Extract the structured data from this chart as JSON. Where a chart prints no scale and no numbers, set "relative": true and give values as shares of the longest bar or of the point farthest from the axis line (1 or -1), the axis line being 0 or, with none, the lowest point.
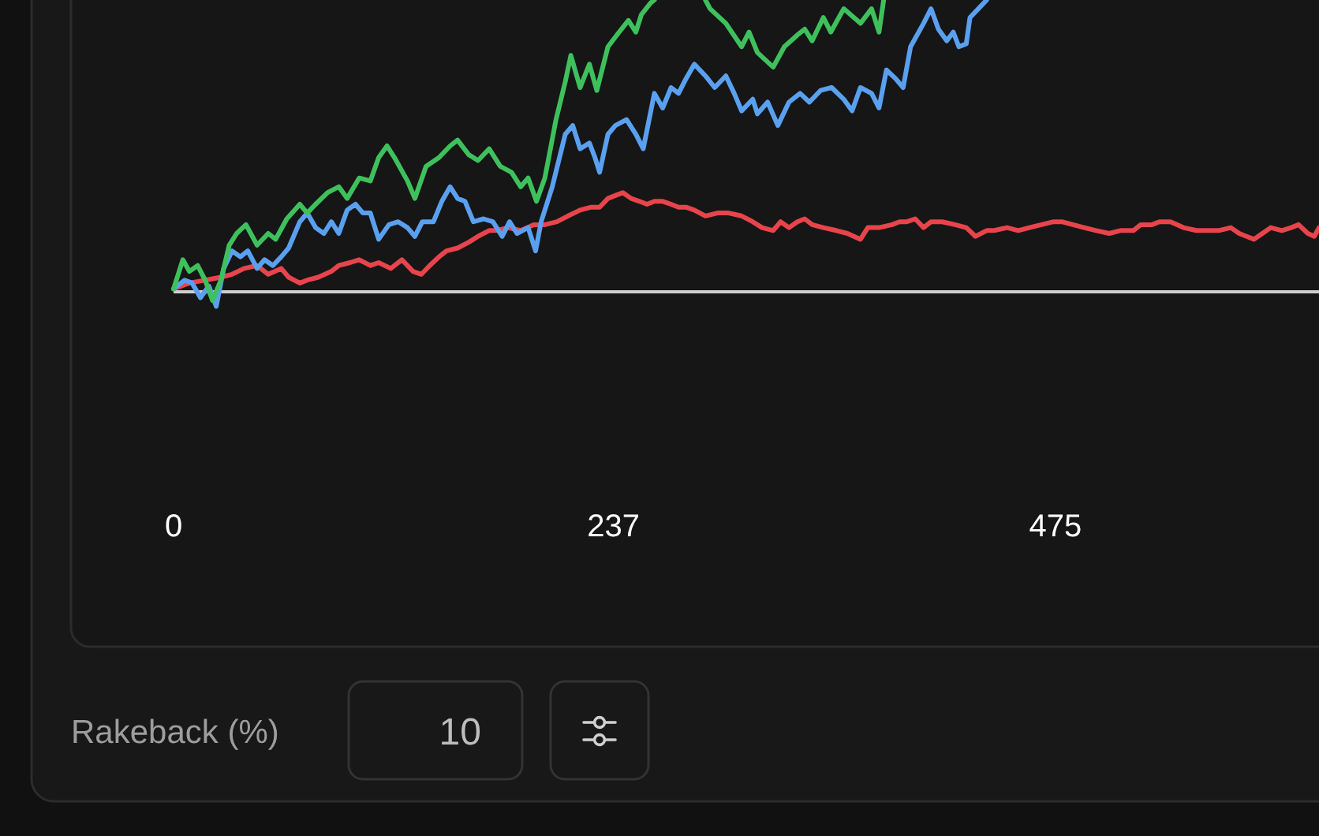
{
  "chart_data": {
    "type": "line",
    "relative": true,
    "xlim": [
      0,
      617
    ],
    "xticks": [
      0,
      237,
      475
    ],
    "series": [
      {
        "color": "#3ec15c",
        "x": [
          0,
          5,
          8.5,
          13,
          17,
          21,
          25.5,
          30,
          34,
          39,
          45,
          51,
          55,
          61,
          68,
          72,
          76.5,
          83,
          89,
          93.5,
          100,
          106,
          110.5,
          115,
          119,
          126,
          130,
          136,
          143,
          149,
          153,
          159,
          164,
          170,
          176,
          182,
          187,
          191,
          195.5,
          200,
          206,
          211,
          214,
          219,
          224,
          228,
          234,
          240,
          245,
          249,
          252,
          257,
          259,
          270,
          286.5,
          289,
          297.5,
          306,
          310,
          314.5,
          323,
          329,
          336,
          340,
          344,
          350,
          354,
          361,
          370,
          376,
          380,
          382.5
        ],
        "values": [
          0.01,
          0.11,
          0.07,
          0.09,
          0.04,
          -0.03,
          0.04,
          0.16,
          0.2,
          0.23,
          0.16,
          0.2,
          0.18,
          0.25,
          0.3,
          0.27,
          0.3,
          0.34,
          0.36,
          0.32,
          0.39,
          0.38,
          0.46,
          0.5,
          0.46,
          0.38,
          0.32,
          0.43,
          0.46,
          0.5,
          0.52,
          0.47,
          0.45,
          0.49,
          0.43,
          0.41,
          0.36,
          0.39,
          0.31,
          0.39,
          0.59,
          0.72,
          0.81,
          0.7,
          0.78,
          0.69,
          0.84,
          0.89,
          0.93,
          0.89,
          0.95,
          0.99,
          1,
          null,
          1,
          0.97,
          0.92,
          0.84,
          0.89,
          0.82,
          0.77,
          0.84,
          0.88,
          0.9,
          0.86,
          0.94,
          0.89,
          0.97,
          0.92,
          0.97,
          0.89,
          1
        ]
      },
      {
        "color": "#5aa0f0",
        "x": [
          0,
          6,
          10,
          14.5,
          19,
          23,
          27,
          31.5,
          36,
          40,
          45,
          49,
          53.5,
          58,
          62,
          68,
          72,
          76.5,
          81,
          85,
          89,
          93.5,
          98,
          102,
          106,
          110.5,
          116,
          121,
          126,
          130,
          134,
          140,
          144.5,
          149,
          153,
          157,
          161.5,
          167,
          172,
          177,
          181,
          185,
          191,
          195,
          198,
          204,
          211,
          215,
          219,
          224,
          227,
          229.5,
          234,
          238,
          244,
          249,
          253,
          259,
          263.5,
          268,
          272,
          276,
          280.5,
          286.5,
          291.5,
          297.5,
          302,
          306,
          312,
          314.5,
          320,
          325.5,
          331.5,
          337.5,
          342.5,
          348.5,
          354.5,
          361,
          365.5,
          370,
          376,
          380,
          384,
          389,
          393,
          397,
          404,
          408,
          412,
          416.5,
          420,
          423,
          427,
          429,
          433.5,
          438
        ],
        "values": [
          0.01,
          0.04,
          0.03,
          -0.02,
          0.02,
          -0.05,
          0.08,
          0.14,
          0.12,
          0.14,
          0.08,
          0.11,
          0.09,
          0.12,
          0.15,
          0.24,
          0.27,
          0.22,
          0.2,
          0.24,
          0.2,
          0.28,
          0.3,
          0.27,
          0.27,
          0.18,
          0.23,
          0.24,
          0.22,
          0.19,
          0.24,
          0.24,
          0.31,
          0.36,
          0.32,
          0.31,
          0.24,
          0.25,
          0.24,
          0.19,
          0.24,
          0.2,
          0.22,
          0.14,
          0.24,
          0.36,
          0.54,
          0.57,
          0.49,
          0.51,
          0.46,
          0.41,
          0.54,
          0.57,
          0.59,
          0.54,
          0.49,
          0.68,
          0.63,
          0.7,
          0.68,
          0.73,
          0.78,
          0.74,
          0.7,
          0.74,
          0.68,
          0.62,
          0.66,
          0.61,
          0.65,
          0.57,
          0.65,
          0.68,
          0.65,
          0.69,
          0.7,
          0.66,
          0.62,
          0.7,
          0.68,
          0.63,
          0.76,
          0.73,
          0.7,
          0.84,
          0.92,
          0.97,
          0.9,
          0.86,
          0.89,
          0.84,
          0.85,
          0.94,
          0.97,
          1
        ]
      },
      {
        "color": "#e8444c",
        "x": [
          0,
          8.5,
          17,
          25.5,
          31.5,
          38,
          45,
          51,
          58,
          62,
          68,
          72,
          78,
          85,
          89,
          95,
          100,
          106,
          110.5,
          117,
          123,
          129,
          133.5,
          138,
          143,
          147,
          153,
          159,
          164,
          170,
          174,
          180,
          187,
          194,
          200,
          206.5,
          212.5,
          219,
          225,
          229.5,
          234,
          238,
          242,
          246.5,
          251,
          255,
          259,
          263.5,
          268,
          272,
          276,
          280.5,
          286.5,
          293,
          299,
          306,
          312,
          317,
          323,
          327,
          331.5,
          336,
          340,
          344,
          350,
          357,
          363,
          370,
          374,
          380,
          387,
          391,
          395,
          399.5,
          404,
          408,
          414,
          421,
          427,
          432,
          438,
          442,
          449,
          455,
          461,
          467.5,
          474,
          478.5,
          484.5,
          490.5,
          497,
          504,
          510,
          517,
          521,
          527,
          531,
          537,
          544,
          551,
          556.5,
          563,
          569.5,
          574,
          578,
          582,
          586.5,
          591,
          597,
          602,
          606,
          611,
          614.5,
          617
        ],
        "values": [
          0.01,
          0.03,
          0.04,
          0.05,
          0.06,
          0.08,
          0.09,
          0.06,
          0.08,
          0.05,
          0.03,
          0.04,
          0.05,
          0.07,
          0.09,
          0.1,
          0.11,
          0.09,
          0.1,
          0.08,
          0.11,
          0.07,
          0.06,
          0.09,
          0.12,
          0.14,
          0.15,
          0.17,
          0.19,
          0.21,
          0.21,
          0.22,
          0.21,
          0.23,
          0.23,
          0.24,
          0.26,
          0.28,
          0.29,
          0.29,
          0.32,
          0.33,
          0.34,
          0.32,
          0.31,
          0.3,
          0.31,
          0.31,
          0.3,
          0.29,
          0.29,
          0.28,
          0.26,
          0.27,
          0.27,
          0.26,
          0.24,
          0.22,
          0.21,
          0.24,
          0.22,
          0.24,
          0.25,
          0.23,
          0.22,
          0.21,
          0.2,
          0.18,
          0.22,
          0.22,
          0.23,
          0.24,
          0.24,
          0.25,
          0.22,
          0.24,
          0.24,
          0.23,
          0.22,
          0.19,
          0.21,
          0.21,
          0.22,
          0.21,
          0.22,
          0.23,
          0.24,
          0.24,
          0.23,
          0.22,
          0.21,
          0.2,
          0.21,
          0.21,
          0.23,
          0.23,
          0.24,
          0.24,
          0.22,
          0.21,
          0.21,
          0.21,
          0.22,
          0.2,
          0.19,
          0.18,
          0.2,
          0.22,
          0.21,
          0.22,
          0.23,
          0.2,
          0.19,
          0.22
        ]
      }
    ],
    "annotations": [
      "Rakeback (%)",
      "10"
    ]
  }
}
